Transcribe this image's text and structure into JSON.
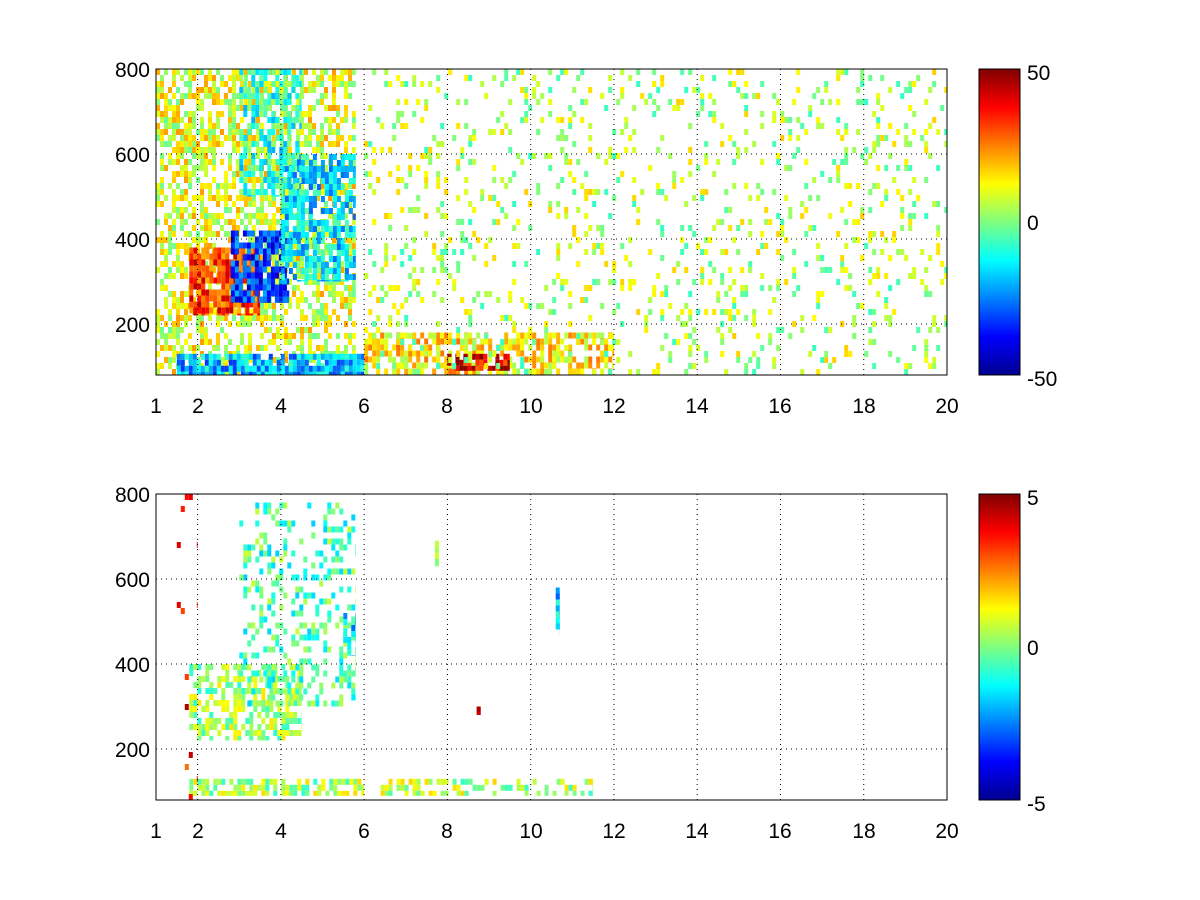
{
  "chart_data": [
    {
      "type": "heatmap",
      "title": "",
      "xlabel": "",
      "ylabel": "",
      "xlim": [
        1,
        20
      ],
      "ylim": [
        80,
        800
      ],
      "x_ticks": [
        "1",
        "2",
        "4",
        "6",
        "8",
        "10",
        "12",
        "14",
        "16",
        "18",
        "20"
      ],
      "y_ticks": [
        "200",
        "400",
        "600",
        "800"
      ],
      "grid": true,
      "colormap": "jet",
      "clim": [
        -50,
        50
      ],
      "colorbar_ticks": [
        "-50",
        "0",
        "50"
      ],
      "regions": [
        {
          "x": [
            1.0,
            5.8
          ],
          "y": [
            80,
            800
          ],
          "value": 10,
          "density": 0.55
        },
        {
          "x": [
            1.8,
            3.5
          ],
          "y": [
            220,
            380
          ],
          "value": 32,
          "density": 0.85
        },
        {
          "x": [
            2.8,
            4.2
          ],
          "y": [
            250,
            420
          ],
          "value": -32,
          "density": 0.8
        },
        {
          "x": [
            4.0,
            5.8
          ],
          "y": [
            300,
            600
          ],
          "value": -15,
          "density": 0.7
        },
        {
          "x": [
            3.0,
            4.5
          ],
          "y": [
            500,
            800
          ],
          "value": -8,
          "density": 0.6
        },
        {
          "x": [
            1.5,
            6.0
          ],
          "y": [
            80,
            130
          ],
          "value": -20,
          "density": 0.9
        },
        {
          "x": [
            6.0,
            12.0
          ],
          "y": [
            80,
            180
          ],
          "value": 15,
          "density": 0.6
        },
        {
          "x": [
            8.0,
            9.5
          ],
          "y": [
            90,
            130
          ],
          "value": 40,
          "density": 0.8
        },
        {
          "x": [
            6.0,
            20.0
          ],
          "y": [
            80,
            800
          ],
          "value": 5,
          "density": 0.14
        }
      ]
    },
    {
      "type": "heatmap",
      "title": "",
      "xlabel": "",
      "ylabel": "",
      "xlim": [
        1,
        20
      ],
      "ylim": [
        80,
        800
      ],
      "x_ticks": [
        "1",
        "2",
        "4",
        "6",
        "8",
        "10",
        "12",
        "14",
        "16",
        "18",
        "20"
      ],
      "y_ticks": [
        "200",
        "400",
        "600",
        "800"
      ],
      "grid": true,
      "colormap": "jet",
      "clim": [
        -5,
        5
      ],
      "colorbar_ticks": [
        "-5",
        "0",
        "5"
      ],
      "regions": [
        {
          "x": [
            1.8,
            4.5
          ],
          "y": [
            220,
            400
          ],
          "value": 0.3,
          "density": 0.55
        },
        {
          "x": [
            3.0,
            5.8
          ],
          "y": [
            300,
            780
          ],
          "value": -0.5,
          "density": 0.3
        },
        {
          "x": [
            1.8,
            6.0
          ],
          "y": [
            90,
            130
          ],
          "value": 0.4,
          "density": 0.7
        },
        {
          "x": [
            6.3,
            11.5
          ],
          "y": [
            90,
            130
          ],
          "value": 0.5,
          "density": 0.45
        },
        {
          "x": [
            5.5,
            5.8
          ],
          "y": [
            420,
            520
          ],
          "value": -1.5,
          "density": 0.6
        },
        {
          "x": [
            10.6,
            10.7
          ],
          "y": [
            470,
            580
          ],
          "value": -1.8,
          "density": 0.8
        },
        {
          "x": [
            8.7,
            8.8
          ],
          "y": [
            280,
            300
          ],
          "value": 4.0,
          "density": 1.0
        },
        {
          "x": [
            7.7,
            7.8
          ],
          "y": [
            630,
            690
          ],
          "value": 0.8,
          "density": 0.8
        },
        {
          "x": [
            1.5,
            2.0
          ],
          "y": [
            80,
            800
          ],
          "value": 3.5,
          "density": 0.04
        }
      ]
    }
  ]
}
